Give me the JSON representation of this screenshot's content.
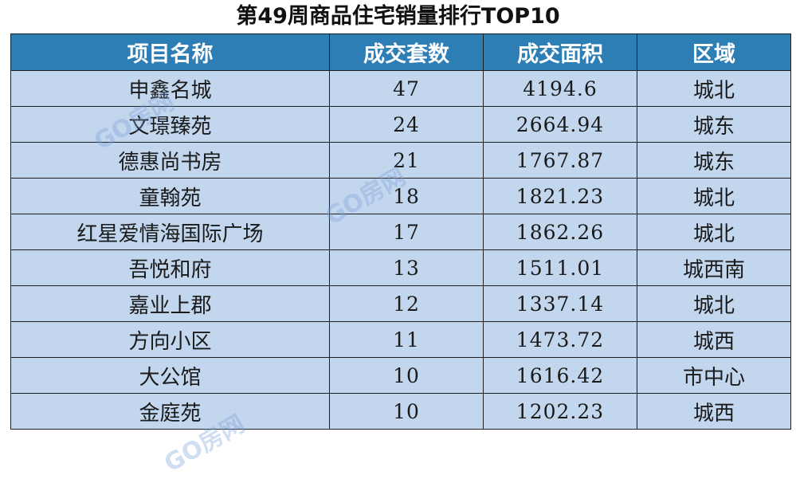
{
  "title": "第49周商品住宅销量排行TOP10",
  "table": {
    "headers": [
      "项目名称",
      "成交套数",
      "成交面积",
      "区域"
    ],
    "rows": [
      {
        "name": "申鑫名城",
        "units": "47",
        "area": "4194.6",
        "region": "城北"
      },
      {
        "name": "文璟臻苑",
        "units": "24",
        "area": "2664.94",
        "region": "城东"
      },
      {
        "name": "德惠尚书房",
        "units": "21",
        "area": "1767.87",
        "region": "城东"
      },
      {
        "name": "童翰苑",
        "units": "18",
        "area": "1821.23",
        "region": "城北"
      },
      {
        "name": "红星爱情海国际广场",
        "units": "17",
        "area": "1862.26",
        "region": "城北"
      },
      {
        "name": "吾悦和府",
        "units": "13",
        "area": "1511.01",
        "region": "城西南"
      },
      {
        "name": "嘉业上郡",
        "units": "12",
        "area": "1337.14",
        "region": "城北"
      },
      {
        "name": "方向小区",
        "units": "11",
        "area": "1473.72",
        "region": "城西"
      },
      {
        "name": "大公馆",
        "units": "10",
        "area": "1616.42",
        "region": "市中心"
      },
      {
        "name": "金庭苑",
        "units": "10",
        "area": "1202.23",
        "region": "城西"
      }
    ]
  },
  "watermark": "GO房网",
  "colors": {
    "header_bg": "#2e7eb6",
    "row_bg": "#c2d6ee",
    "border": "#1f1f1f"
  }
}
